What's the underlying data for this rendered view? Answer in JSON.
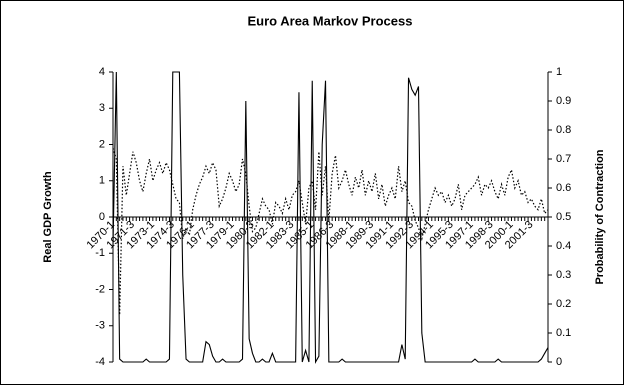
{
  "chart_data": {
    "type": "line",
    "title": "Euro Area Markov Process",
    "y_label": "Real GDP Growth",
    "y2_label": "Probability of Contraction",
    "categories": [
      "1970-1",
      null,
      null,
      null,
      null,
      null,
      "1971-3",
      null,
      null,
      null,
      null,
      null,
      "1973-1",
      null,
      null,
      null,
      null,
      null,
      "1974-3",
      null,
      null,
      null,
      null,
      null,
      "1976-1",
      null,
      null,
      null,
      null,
      null,
      "1977-3",
      null,
      null,
      null,
      null,
      null,
      "1979-1",
      null,
      null,
      null,
      null,
      null,
      "1980-3",
      null,
      null,
      null,
      null,
      null,
      "1982-1",
      null,
      null,
      null,
      null,
      null,
      "1983-3",
      null,
      null,
      null,
      null,
      null,
      "1985-1",
      null,
      null,
      null,
      null,
      null,
      "1986-3",
      null,
      null,
      null,
      null,
      null,
      "1988-1",
      null,
      null,
      null,
      null,
      null,
      "1989-3",
      null,
      null,
      null,
      null,
      null,
      "1991-1",
      null,
      null,
      null,
      null,
      null,
      "1992-3",
      null,
      null,
      null,
      null,
      null,
      "1994-1",
      null,
      null,
      null,
      null,
      null,
      "1995-3",
      null,
      null,
      null,
      null,
      null,
      "1997-1",
      null,
      null,
      null,
      null,
      null,
      "1998-3",
      null,
      null,
      null,
      null,
      null,
      "2000-1",
      null,
      null,
      null,
      null,
      null,
      "2001-3",
      null,
      null,
      null,
      null,
      null
    ],
    "series": [
      {
        "color": "#000000",
        "dash": "dotted",
        "values": [
          1.9,
          1.6,
          -2.7,
          1.4,
          0.6,
          1.2,
          1.8,
          1.5,
          1.0,
          0.7,
          1.2,
          1.6,
          1.0,
          1.3,
          1.5,
          1.2,
          1.5,
          1.3,
          0.9,
          0.5,
          0.4,
          -0.6,
          -0.3,
          -0.5,
          0.2,
          0.6,
          0.9,
          1.1,
          1.4,
          1.2,
          1.5,
          1.3,
          0.3,
          0.5,
          0.8,
          1.2,
          1.0,
          0.7,
          0.9,
          1.6,
          1.2,
          0.3,
          -0.4,
          -0.3,
          0.1,
          0.5,
          0.3,
          0.2,
          -0.2,
          0.4,
          0.3,
          0.1,
          0.5,
          0.2,
          0.6,
          0.7,
          1.0,
          0.4,
          -0.2,
          0.8,
          1.0,
          0.2,
          1.8,
          0.6,
          1.4,
          -0.1,
          1.2,
          1.7,
          0.8,
          1.0,
          1.3,
          0.9,
          0.6,
          1.1,
          0.8,
          1.3,
          0.6,
          1.0,
          0.7,
          1.2,
          0.5,
          0.9,
          0.3,
          0.6,
          0.8,
          0.5,
          1.4,
          0.7,
          1.0,
          0.4,
          0.3,
          -0.1,
          -0.3,
          -0.6,
          -0.2,
          0.2,
          0.5,
          0.8,
          0.6,
          0.7,
          0.4,
          0.6,
          0.3,
          0.5,
          0.9,
          0.2,
          0.6,
          0.7,
          0.8,
          0.9,
          1.1,
          0.6,
          0.9,
          0.8,
          1.0,
          0.7,
          0.5,
          0.9,
          0.6,
          1.1,
          1.3,
          0.8,
          1.0,
          0.6,
          0.7,
          0.4,
          0.5,
          0.3,
          0.2,
          0.5,
          0.1,
          0.2
        ]
      },
      {
        "color": "#000000",
        "dash": "solid",
        "axis": "y2",
        "values": [
          0.4,
          1,
          0.01,
          0,
          0,
          0,
          0,
          0,
          0,
          0,
          0.01,
          0,
          0,
          0,
          0,
          0,
          0,
          0.01,
          1,
          1,
          1,
          0.3,
          0.01,
          0,
          0,
          0,
          0,
          0,
          0.07,
          0.06,
          0.02,
          0,
          0,
          0.01,
          0,
          0,
          0,
          0,
          0,
          0.01,
          0.9,
          0.08,
          0.03,
          0,
          0,
          0.01,
          0,
          0,
          0.03,
          0,
          0,
          0,
          0,
          0,
          0,
          0,
          0.93,
          0,
          0.04,
          0,
          0.97,
          0,
          0.02,
          0.75,
          0.97,
          0,
          0,
          0,
          0,
          0.01,
          0,
          0,
          0,
          0,
          0,
          0,
          0,
          0,
          0,
          0,
          0,
          0,
          0,
          0,
          0,
          0,
          0,
          0.06,
          0.01,
          0.98,
          0.94,
          0.92,
          0.95,
          0.1,
          0,
          0,
          0,
          0,
          0,
          0,
          0,
          0,
          0,
          0,
          0,
          0,
          0,
          0,
          0,
          0.01,
          0,
          0,
          0,
          0,
          0,
          0,
          0.01,
          0,
          0,
          0,
          0,
          0,
          0,
          0,
          0,
          0,
          0,
          0,
          0,
          0.01,
          0.03,
          0.05
        ]
      }
    ],
    "ylim": [
      -4,
      4
    ],
    "yticks": [
      -4,
      -3,
      -2,
      -1,
      0,
      1,
      2,
      3,
      4
    ],
    "y2lim": [
      0,
      1
    ],
    "y2ticks": [
      0,
      0.1,
      0.2,
      0.3,
      0.4,
      0.5,
      0.6,
      0.7,
      0.8,
      0.9,
      1
    ],
    "grid": false
  }
}
